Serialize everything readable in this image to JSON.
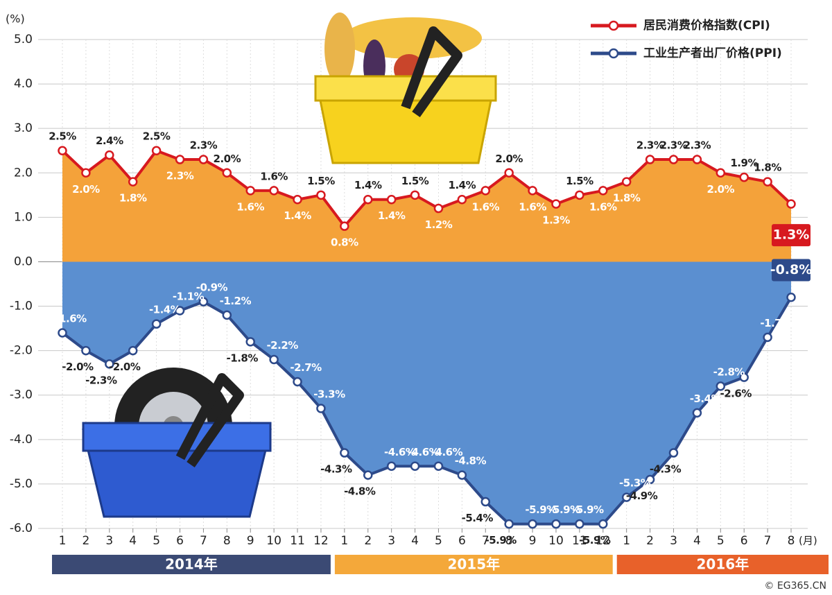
{
  "chart_data": {
    "type": "line",
    "y_unit": "(%)",
    "x_unit": "(月)",
    "categories": [
      "1",
      "2",
      "3",
      "4",
      "5",
      "6",
      "7",
      "8",
      "9",
      "10",
      "11",
      "12",
      "1",
      "2",
      "3",
      "4",
      "5",
      "6",
      "7",
      "8",
      "9",
      "10",
      "11",
      "12",
      "1",
      "2",
      "3",
      "4",
      "5",
      "6",
      "7",
      "8"
    ],
    "groups": [
      "2014年",
      "2015年",
      "2016年"
    ],
    "group_colors": [
      "#3b4a74",
      "#f4a83a",
      "#e8612a"
    ],
    "series": [
      {
        "name": "居民消费价格指数(CPI)",
        "color": "#d7191f",
        "fill": "#f4a23a",
        "values": [
          2.5,
          2.0,
          2.4,
          1.8,
          2.5,
          2.3,
          2.3,
          2.0,
          1.6,
          1.6,
          1.4,
          1.5,
          0.8,
          1.4,
          1.4,
          1.5,
          1.2,
          1.4,
          1.6,
          2.0,
          1.6,
          1.3,
          1.5,
          1.6,
          1.8,
          2.3,
          2.3,
          2.3,
          2.0,
          1.9,
          1.8,
          1.3
        ],
        "value_labels": [
          "2.5%",
          "2.0%",
          "2.4%",
          "1.8%",
          "2.5%",
          "2.3%",
          "2.3%",
          "2.0%",
          "1.6%",
          "1.6%",
          "1.4%",
          "1.5%",
          "0.8%",
          "1.4%",
          "1.4%",
          "1.5%",
          "1.2%",
          "1.4%",
          "1.6%",
          "2.0%",
          "1.6%",
          "1.3%",
          "1.5%",
          "1.6%",
          "1.8%",
          "2.3%",
          "2.3%",
          "2.3%",
          "2.0%",
          "1.9%",
          "1.8%",
          "1.3%"
        ]
      },
      {
        "name": "工业生产者出厂价格(PPI)",
        "color": "#2d4a8a",
        "fill": "#5b8fd0",
        "values": [
          -1.6,
          -2.0,
          -2.3,
          -2.0,
          -1.4,
          -1.1,
          -0.9,
          -1.2,
          -1.8,
          -2.2,
          -2.7,
          -3.3,
          -4.3,
          -4.8,
          -4.6,
          -4.6,
          -4.6,
          -4.8,
          -5.4,
          -5.9,
          -5.9,
          -5.9,
          -5.9,
          -5.9,
          -5.3,
          -4.9,
          -4.3,
          -3.4,
          -2.8,
          -2.6,
          -1.7,
          -0.8
        ],
        "value_labels": [
          "-1.6%",
          "-2.0%",
          "-2.3%",
          "-2.0%",
          "-1.4%",
          "-1.1%",
          "-0.9%",
          "-1.2%",
          "-1.8%",
          "-2.2%",
          "-2.7%",
          "-3.3%",
          "-4.3%",
          "-4.8%",
          "-4.6%",
          "-4.6%",
          "-4.6%",
          "-4.8%",
          "-5.4%",
          "-5.9%",
          "-5.9%",
          "-5.9%",
          "-5.9%",
          "-5.9%",
          "-5.3%",
          "-4.9%",
          "-4.3%",
          "-3.4%",
          "-2.8%",
          "-2.6%",
          "-1.7%",
          "-0.8%"
        ]
      }
    ],
    "ylim": [
      -6,
      5
    ],
    "yticks": [
      {
        "value": 5,
        "label": "5.0"
      },
      {
        "value": 4,
        "label": "4.0"
      },
      {
        "value": 3,
        "label": "3.0"
      },
      {
        "value": 2,
        "label": "2.0"
      },
      {
        "value": 1,
        "label": "1.0"
      },
      {
        "value": 0,
        "label": "0.0"
      },
      {
        "value": -1,
        "label": "-1.0"
      },
      {
        "value": -2,
        "label": "-2.0"
      },
      {
        "value": -3,
        "label": "-3.0"
      },
      {
        "value": -4,
        "label": "-4.0"
      },
      {
        "value": -5,
        "label": "-5.0"
      },
      {
        "value": -6,
        "label": "-6.0"
      }
    ],
    "grid": true,
    "legend": "top-right",
    "source": "© EG365.CN"
  }
}
